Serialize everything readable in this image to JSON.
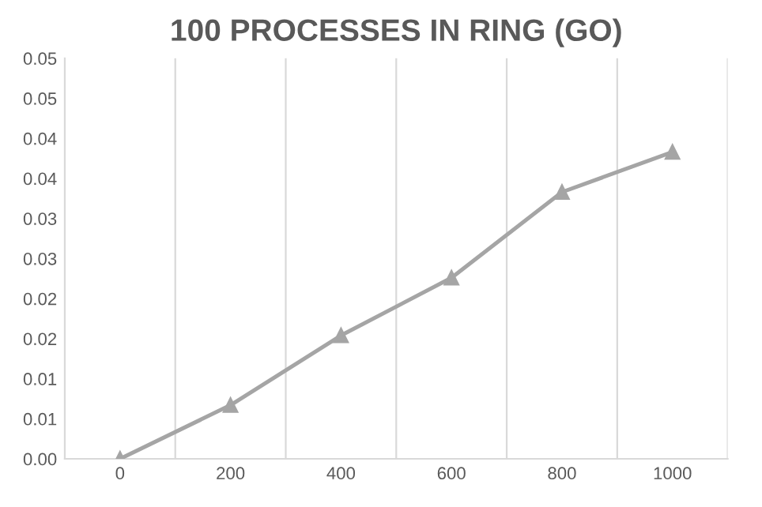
{
  "chart_data": {
    "type": "line",
    "title": "100 PROCESSES IN RING (GO)",
    "categories": [
      "0",
      "200",
      "400",
      "600",
      "800",
      "1000"
    ],
    "series": [
      {
        "color": "#a5a5a5",
        "values": [
          0.0,
          0.0067,
          0.0154,
          0.0226,
          0.0333,
          0.0383
        ]
      }
    ],
    "ylim": [
      0,
      0.05
    ],
    "yticks": [
      {
        "value": 0,
        "label": "0.00"
      },
      {
        "value": 0.005,
        "label": "0.01"
      },
      {
        "value": 0.01,
        "label": "0.01"
      },
      {
        "value": 0.015,
        "label": "0.02"
      },
      {
        "value": 0.02,
        "label": "0.02"
      },
      {
        "value": 0.025,
        "label": "0.03"
      },
      {
        "value": 0.03,
        "label": "0.03"
      },
      {
        "value": 0.035,
        "label": "0.04"
      },
      {
        "value": 0.04,
        "label": "0.04"
      },
      {
        "value": 0.045,
        "label": "0.05"
      },
      {
        "value": 0.05,
        "label": "0.05"
      }
    ],
    "grid": "x",
    "marker": "triangle",
    "line_style": "solid",
    "legend": false
  }
}
